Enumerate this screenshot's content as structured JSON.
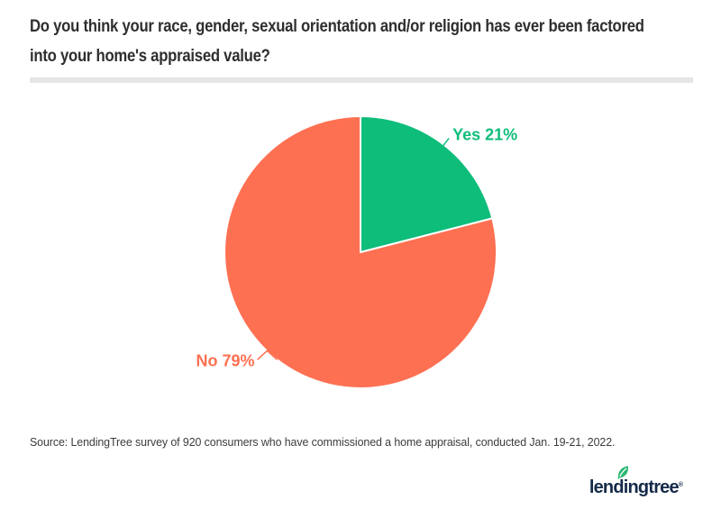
{
  "header": {
    "title": "Do you think your race, gender, sexual orientation and/or religion has ever been factored into your home's appraised value?",
    "title_lines": [
      "Do you think your race, gender, sexual orientation and/or religion has ever been factored",
      "into your home's appraised value?"
    ]
  },
  "chart_data": {
    "type": "pie",
    "title": "Do you think your race, gender, sexual orientation and/or religion has ever been factored into your home's appraised value?",
    "start_angle_deg": 0,
    "direction": "clockwise",
    "legend": "none",
    "data_label_format": "{label} {value}%",
    "slices": [
      {
        "label": "Yes",
        "value": 21,
        "color": "#0ebd7a"
      },
      {
        "label": "No",
        "value": 79,
        "color": "#fe7052"
      }
    ]
  },
  "footer": {
    "source": "Source: LendingTree survey of 920 consumers who have commissioned a home appraisal, conducted Jan. 19-21, 2022.",
    "logo_text": "lendingtree",
    "registered_symbol": "®"
  },
  "branding": {
    "logo_navy": "#152a49",
    "leaf_green": "#2bb673",
    "divider_gray": "#e5e5e5",
    "title_color": "#2e2e2e"
  }
}
